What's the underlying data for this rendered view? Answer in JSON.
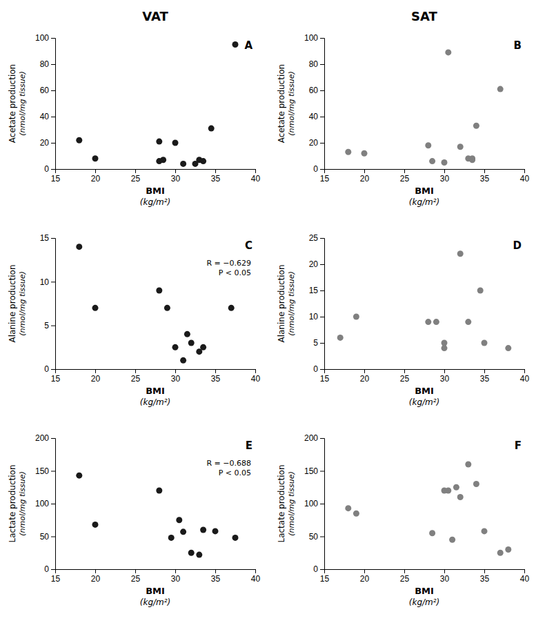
{
  "chart_data": [
    {
      "type": "scatter",
      "title": "VAT",
      "x": [
        18,
        20,
        28,
        28,
        28.5,
        30,
        31,
        32.5,
        33,
        33.5,
        34.5,
        37.5
      ],
      "values": [
        22,
        8,
        21,
        6,
        7,
        20,
        4,
        4,
        7,
        6,
        31,
        95
      ],
      "color": "#1a1a1a",
      "xlabel": "BMI\n(kg/m²)",
      "ylabel": "Acetate production\n(nmol/mg tissue)",
      "xlim": [
        15,
        40
      ],
      "xticks": [
        15,
        20,
        25,
        30,
        35,
        40
      ],
      "ylim": [
        0,
        100
      ],
      "yticks": [
        0,
        20,
        40,
        60,
        80,
        100
      ],
      "annotations": [
        "A"
      ],
      "grid": false
    },
    {
      "type": "scatter",
      "title": "SAT",
      "x": [
        18,
        20,
        28,
        28.5,
        30,
        30.5,
        32,
        33,
        33.5,
        33.5,
        34,
        37
      ],
      "values": [
        13,
        12,
        18,
        6,
        5,
        89,
        17,
        8,
        8,
        7,
        33,
        61
      ],
      "color": "#808080",
      "xlabel": "BMI\n(kg/m²)",
      "ylabel": "Acetate production\n(nmol/mg tissue)",
      "xlim": [
        15,
        40
      ],
      "xticks": [
        15,
        20,
        25,
        30,
        35,
        40
      ],
      "ylim": [
        0,
        100
      ],
      "yticks": [
        0,
        20,
        40,
        60,
        80,
        100
      ],
      "annotations": [
        "B"
      ],
      "grid": false
    },
    {
      "type": "scatter",
      "x": [
        18,
        20,
        28,
        29,
        30,
        31,
        31.5,
        32,
        33,
        33.5,
        37
      ],
      "values": [
        14,
        7,
        9,
        7,
        2.5,
        1,
        4,
        3,
        2,
        2.5,
        7
      ],
      "color": "#1a1a1a",
      "xlabel": "BMI\n(kg/m²)",
      "ylabel": "Alanine production\n(nmol/mg tissue)",
      "xlim": [
        15,
        40
      ],
      "xticks": [
        15,
        20,
        25,
        30,
        35,
        40
      ],
      "ylim": [
        0,
        15
      ],
      "yticks": [
        0,
        5,
        10,
        15
      ],
      "annotations": [
        "C",
        "R = −0.629\nP < 0.05"
      ],
      "grid": false
    },
    {
      "type": "scatter",
      "x": [
        17,
        19,
        28,
        29,
        30,
        30,
        32,
        33,
        34.5,
        35,
        38
      ],
      "values": [
        6,
        10,
        9,
        9,
        5,
        4,
        22,
        9,
        15,
        5,
        4
      ],
      "color": "#808080",
      "xlabel": "BMI\n(kg/m²)",
      "ylabel": "Alanine production\n(nmol/mg tissue)",
      "xlim": [
        15,
        40
      ],
      "xticks": [
        15,
        20,
        25,
        30,
        35,
        40
      ],
      "ylim": [
        0,
        25
      ],
      "yticks": [
        0,
        5,
        10,
        15,
        20,
        25
      ],
      "annotations": [
        "D"
      ],
      "grid": false
    },
    {
      "type": "scatter",
      "x": [
        18,
        20,
        28,
        29.5,
        30.5,
        31,
        32,
        33,
        33.5,
        35,
        37.5
      ],
      "values": [
        143,
        68,
        120,
        48,
        75,
        57,
        25,
        22,
        60,
        58,
        48
      ],
      "color": "#1a1a1a",
      "xlabel": "BMI\n(kg/m²)",
      "ylabel": "Lactate production\n(nmol/mg tissue)",
      "xlim": [
        15,
        40
      ],
      "xticks": [
        15,
        20,
        25,
        30,
        35,
        40
      ],
      "ylim": [
        0,
        200
      ],
      "yticks": [
        0,
        50,
        100,
        150,
        200
      ],
      "annotations": [
        "E",
        "R = −0.688\nP < 0.05"
      ],
      "grid": false
    },
    {
      "type": "scatter",
      "x": [
        18,
        19,
        28.5,
        30,
        30.5,
        31,
        31.5,
        32,
        33,
        34,
        35,
        37,
        38
      ],
      "values": [
        93,
        85,
        55,
        120,
        120,
        45,
        125,
        110,
        160,
        130,
        58,
        25,
        30
      ],
      "color": "#808080",
      "xlabel": "BMI\n(kg/m²)",
      "ylabel": "Lactate production\n(nmol/mg tissue)",
      "xlim": [
        15,
        40
      ],
      "xticks": [
        15,
        20,
        25,
        30,
        35,
        40
      ],
      "ylim": [
        0,
        200
      ],
      "yticks": [
        0,
        50,
        100,
        150,
        200
      ],
      "annotations": [
        "F"
      ],
      "grid": false
    }
  ]
}
